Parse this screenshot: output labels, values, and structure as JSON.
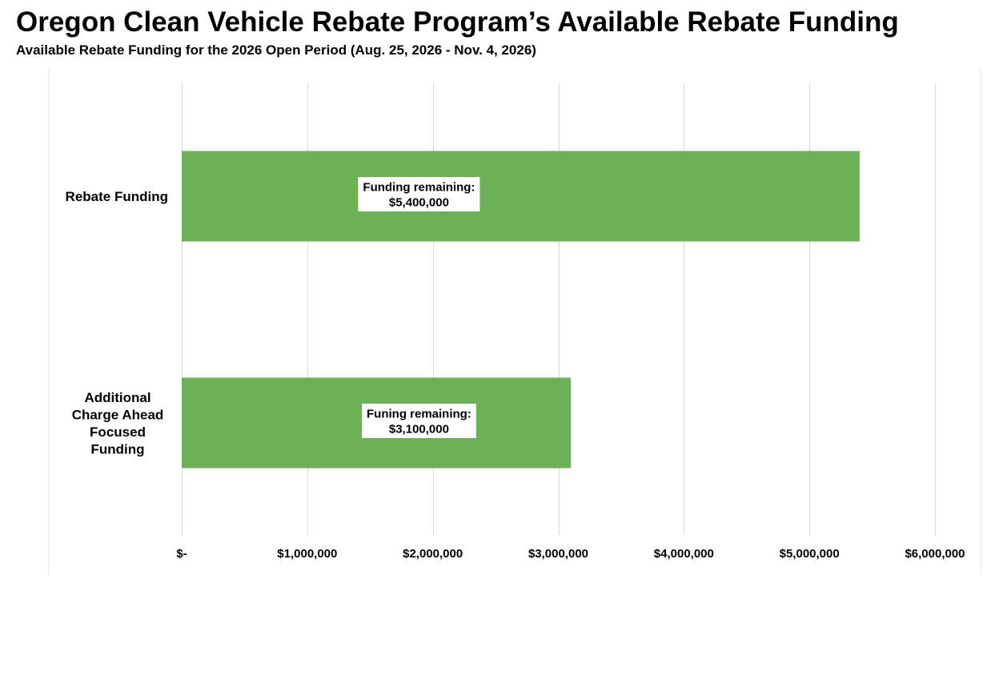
{
  "header": {
    "title": "Oregon Clean Vehicle Rebate Program’s Available Rebate Funding",
    "subtitle": "Available Rebate Funding for the 2026 Open Period (Aug. 25, 2026 - Nov. 4, 2026)"
  },
  "colors": {
    "bar": "#6cb154",
    "grid": "#d9d9d9",
    "label_box": "#ffffff",
    "text": "#000000"
  },
  "chart_data": {
    "type": "bar",
    "orientation": "horizontal",
    "categories": [
      [
        "Rebate Funding"
      ],
      [
        "Additional",
        "Charge Ahead",
        "Focused",
        "Funding"
      ]
    ],
    "values": [
      5400000,
      3100000
    ],
    "data_labels": [
      [
        "Funding remaining:",
        "$5,400,000"
      ],
      [
        "Funing remaining:",
        "$3,100,000"
      ]
    ],
    "x_ticks": [
      0,
      1000000,
      2000000,
      3000000,
      4000000,
      5000000,
      6000000
    ],
    "x_tick_labels": [
      "$-",
      "$1,000,000",
      "$2,000,000",
      "$3,000,000",
      "$4,000,000",
      "$5,000,000",
      "$6,000,000"
    ],
    "xlim": [
      0,
      6000000
    ],
    "grid": true,
    "legend": "none"
  }
}
